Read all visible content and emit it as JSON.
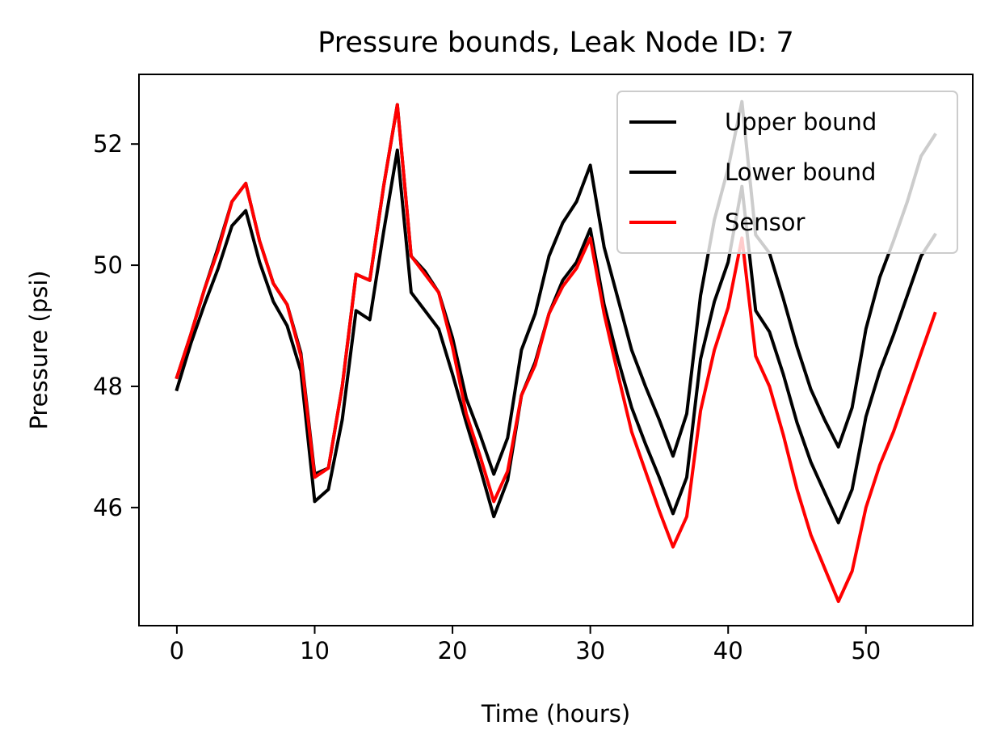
{
  "chart_data": {
    "type": "line",
    "title": "Pressure bounds, Leak Node ID: 7",
    "xlabel": "Time (hours)",
    "ylabel": "Pressure (psi)",
    "xlim": [
      -2.75,
      57.75
    ],
    "ylim": [
      44.05,
      53.15
    ],
    "xticks": [
      0,
      10,
      20,
      30,
      40,
      50
    ],
    "yticks": [
      46,
      48,
      50,
      52
    ],
    "legend_position": "upper right",
    "x": [
      0,
      1,
      2,
      3,
      4,
      5,
      6,
      7,
      8,
      9,
      10,
      11,
      12,
      13,
      14,
      15,
      16,
      17,
      18,
      19,
      20,
      21,
      22,
      23,
      24,
      25,
      26,
      27,
      28,
      29,
      30,
      31,
      32,
      33,
      34,
      35,
      36,
      37,
      38,
      39,
      40,
      41,
      42,
      43,
      44,
      45,
      46,
      47,
      48,
      49,
      50,
      51,
      52,
      53,
      54,
      55
    ],
    "series": [
      {
        "name": "Upper bound",
        "color": "#000000",
        "values": [
          48.15,
          48.85,
          49.6,
          50.3,
          51.05,
          51.35,
          50.4,
          49.7,
          49.35,
          48.55,
          46.55,
          46.65,
          48.0,
          49.85,
          49.75,
          51.3,
          52.65,
          50.15,
          49.9,
          49.55,
          48.8,
          47.8,
          47.2,
          46.55,
          47.15,
          48.6,
          49.2,
          50.15,
          50.7,
          51.05,
          51.65,
          50.3,
          49.45,
          48.6,
          48.0,
          47.45,
          46.85,
          47.55,
          49.5,
          50.75,
          51.6,
          52.7,
          50.5,
          50.2,
          49.45,
          48.65,
          47.95,
          47.45,
          47.0,
          47.65,
          48.95,
          49.8,
          50.4,
          51.05,
          51.8,
          52.15
        ]
      },
      {
        "name": "Lower bound",
        "color": "#000000",
        "values": [
          47.95,
          48.7,
          49.35,
          49.95,
          50.65,
          50.9,
          50.05,
          49.4,
          49.0,
          48.25,
          46.1,
          46.3,
          47.45,
          49.25,
          49.1,
          50.55,
          51.9,
          49.55,
          49.25,
          48.95,
          48.2,
          47.4,
          46.65,
          45.85,
          46.45,
          47.85,
          48.4,
          49.2,
          49.75,
          50.05,
          50.6,
          49.35,
          48.45,
          47.65,
          47.05,
          46.5,
          45.9,
          46.5,
          48.45,
          49.4,
          50.05,
          51.3,
          49.25,
          48.9,
          48.2,
          47.4,
          46.75,
          46.25,
          45.75,
          46.3,
          47.5,
          48.25,
          48.85,
          49.5,
          50.15,
          50.5
        ]
      },
      {
        "name": "Sensor",
        "color": "#ff0000",
        "values": [
          48.15,
          48.85,
          49.6,
          50.25,
          51.05,
          51.35,
          50.4,
          49.7,
          49.35,
          48.5,
          46.5,
          46.65,
          48.0,
          49.85,
          49.75,
          51.3,
          52.65,
          50.15,
          49.85,
          49.55,
          48.65,
          47.55,
          46.85,
          46.1,
          46.6,
          47.85,
          48.35,
          49.2,
          49.65,
          49.95,
          50.45,
          49.2,
          48.2,
          47.25,
          46.6,
          45.95,
          45.35,
          45.85,
          47.6,
          48.6,
          49.3,
          50.45,
          48.5,
          48.0,
          47.2,
          46.3,
          45.55,
          45.0,
          44.45,
          44.95,
          46.0,
          46.7,
          47.25,
          47.9,
          48.55,
          49.2
        ]
      }
    ]
  }
}
